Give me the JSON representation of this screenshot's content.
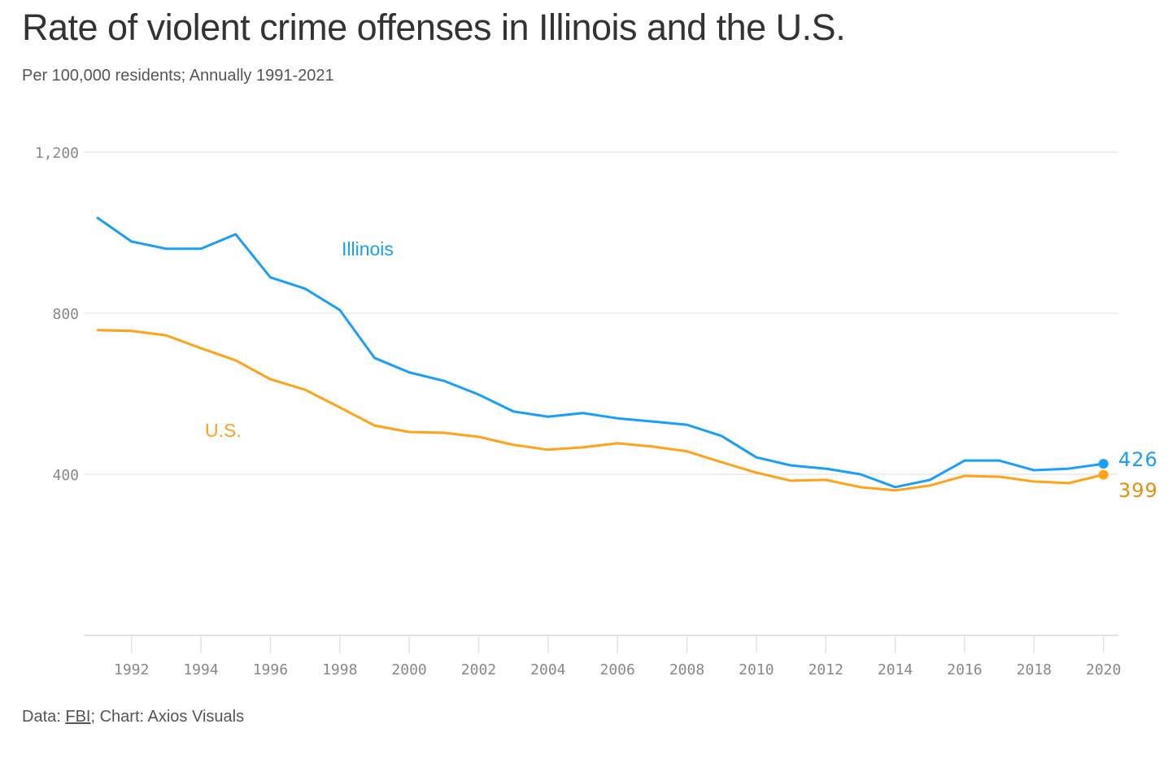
{
  "title": "Rate of violent crime offenses in Illinois and the U.S.",
  "subtitle": "Per 100,000 residents; Annually 1991-2021",
  "footer": {
    "prefix": "Data: ",
    "source": "FBI",
    "suffix": "; Chart: Axios Visuals"
  },
  "chart_data": {
    "type": "line",
    "title": "Rate of violent crime offenses in Illinois and the U.S.",
    "subtitle": "Per 100,000 residents; Annually 1991-2021",
    "x": [
      1991,
      1992,
      1993,
      1994,
      1995,
      1996,
      1997,
      1998,
      1999,
      2000,
      2001,
      2002,
      2003,
      2004,
      2005,
      2006,
      2007,
      2008,
      2009,
      2010,
      2011,
      2012,
      2013,
      2014,
      2015,
      2016,
      2017,
      2018,
      2019,
      2020
    ],
    "xticks": [
      "1992",
      "1994",
      "1996",
      "1998",
      "2000",
      "2002",
      "2004",
      "2006",
      "2008",
      "2010",
      "2012",
      "2014",
      "2016",
      "2018",
      "2020"
    ],
    "yticks": [
      "400",
      "800",
      "1,200"
    ],
    "ytick_values": [
      400,
      800,
      1200
    ],
    "ylim": [
      0,
      1200
    ],
    "xlim": [
      1991,
      2020
    ],
    "grid": "horizontal",
    "series": [
      {
        "name": "Illinois",
        "color": "#1a9efa",
        "end_label": "426",
        "values": [
          1038,
          978,
          960,
          960,
          996,
          889,
          861,
          808,
          689,
          653,
          632,
          598,
          556,
          543,
          552,
          539,
          531,
          523,
          495,
          442,
          422,
          414,
          400,
          368,
          386,
          434,
          434,
          410,
          414,
          426
        ]
      },
      {
        "name": "U.S.",
        "color": "#ffa31a",
        "end_label": "399",
        "values": [
          758,
          756,
          745,
          713,
          683,
          636,
          610,
          566,
          521,
          505,
          503,
          493,
          473,
          461,
          467,
          477,
          469,
          457,
          430,
          404,
          384,
          386,
          368,
          360,
          372,
          396,
          394,
          382,
          378,
          399
        ]
      }
    ]
  }
}
